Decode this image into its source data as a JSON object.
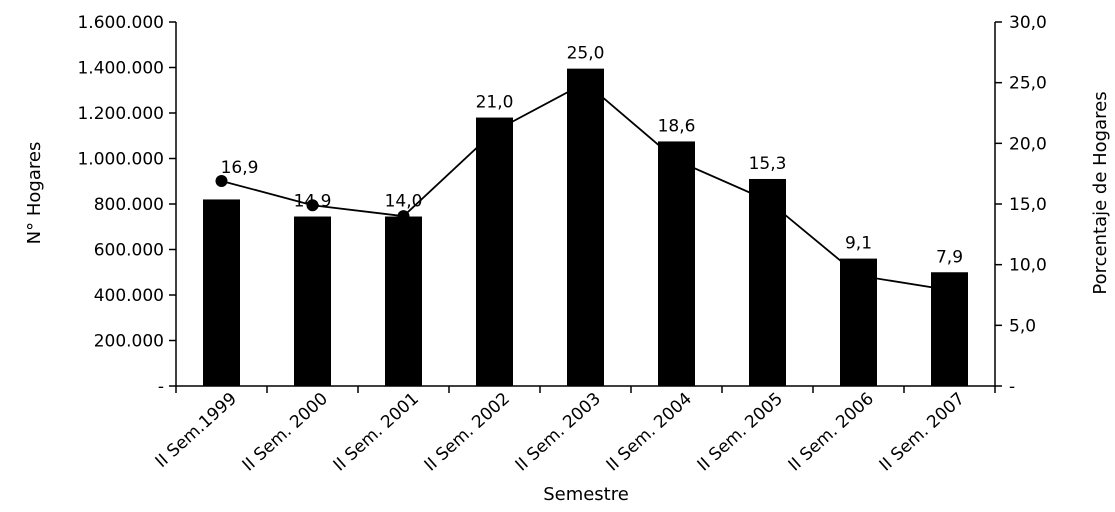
{
  "chart_data": {
    "type": "bar",
    "categories": [
      "II Sem.1999",
      "II Sem. 2000",
      "II Sem. 2001",
      "II Sem. 2002",
      "II Sem. 2003",
      "II Sem. 2004",
      "II Sem. 2005",
      "II Sem. 2006",
      "II Sem. 2007"
    ],
    "series": [
      {
        "type": "bar",
        "axis": "left",
        "values": [
          820000,
          745000,
          745000,
          1180000,
          1395000,
          1075000,
          910000,
          560000,
          500000
        ],
        "color": "#000000"
      },
      {
        "type": "line",
        "axis": "right",
        "values": [
          16.9,
          14.9,
          14.0,
          21.0,
          25.0,
          18.6,
          15.3,
          9.1,
          7.9
        ],
        "labels": [
          "16,9",
          "14,9",
          "14,0",
          "21,0",
          "25,0",
          "18,6",
          "15,3",
          "9,1",
          "7,9"
        ],
        "markers": [
          true,
          true,
          true,
          false,
          false,
          false,
          false,
          false,
          false
        ],
        "color": "#000000"
      }
    ],
    "xlabel": "Semestre",
    "ylabel": "N° Hogares",
    "y2label": "Porcentaje de Hogares",
    "ylim": [
      0,
      1600000
    ],
    "y2lim": [
      0,
      30
    ],
    "yticks": [
      "-",
      "200.000",
      "400.000",
      "600.000",
      "800.000",
      "1.000.000",
      "1.200.000",
      "1.400.000",
      "1.600.000"
    ],
    "y2ticks": [
      "-",
      "5,0",
      "10,0",
      "15,0",
      "20,0",
      "25,0",
      "30,0"
    ],
    "grid": false,
    "legend": "none"
  }
}
